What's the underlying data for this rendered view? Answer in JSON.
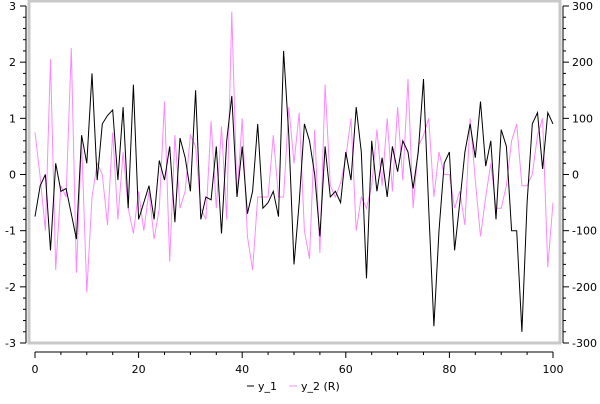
{
  "chart_data": {
    "type": "line",
    "title": "",
    "xlabel": "",
    "ylabel": "",
    "xlim": [
      0,
      100
    ],
    "ylim_left": [
      -3,
      3
    ],
    "ylim_right": [
      -300,
      300
    ],
    "grid": false,
    "legend_placement": "bottom",
    "x_ticks": [
      "0",
      "20",
      "40",
      "60",
      "80",
      "100"
    ],
    "y_ticks_left": [
      "3",
      "2",
      "1",
      "0",
      "-1",
      "-2",
      "-3"
    ],
    "y_ticks_right": [
      "300",
      "200",
      "100",
      "0",
      "-100",
      "-200",
      "-300"
    ],
    "series": [
      {
        "name": "y_1",
        "axis": "left",
        "color": "#000000",
        "values": [
          -0.75,
          -0.2,
          0,
          -1.35,
          0.2,
          -0.3,
          -0.25,
          -0.7,
          -1.15,
          0.7,
          0.2,
          1.8,
          -0.1,
          0.9,
          1.05,
          1.15,
          -0.1,
          1.2,
          -0.6,
          1.6,
          -0.8,
          -0.5,
          -0.2,
          -0.8,
          0.25,
          -0.1,
          0.5,
          -0.85,
          0.65,
          0.3,
          -0.3,
          1.5,
          -0.8,
          -0.4,
          -0.45,
          0.5,
          -1.05,
          0.6,
          1.4,
          -0.4,
          0.5,
          -0.7,
          -0.3,
          0.9,
          -0.6,
          -0.5,
          -0.3,
          -0.75,
          2.2,
          0.7,
          -1.6,
          -0.5,
          0.9,
          0.6,
          0,
          -1.1,
          0.5,
          -0.4,
          -0.3,
          -0.5,
          0.4,
          -0.1,
          1.2,
          0.4,
          -1.85,
          0.6,
          -0.3,
          0.3,
          -0.4,
          0.5,
          0.05,
          0.6,
          0.4,
          -0.25,
          0.4,
          1.7,
          -0.6,
          -2.7,
          -1.0,
          0.2,
          0.4,
          -1.35,
          -0.5,
          0.4,
          0.9,
          0.3,
          1.3,
          0.15,
          0.6,
          -0.8,
          0.8,
          0.5,
          -1.0,
          -1.0,
          -2.8,
          -0.5,
          0.9,
          1.1,
          0.1,
          1.1,
          0.9
        ]
      },
      {
        "name": "y_2 (R)",
        "axis": "right",
        "color": "#ff88ff",
        "values": [
          75,
          -5,
          -100,
          205,
          -170,
          -20,
          -40,
          225,
          -175,
          60,
          -210,
          -40,
          20,
          0,
          -90,
          75,
          -80,
          40,
          -60,
          -105,
          -30,
          -100,
          -30,
          -115,
          -60,
          130,
          -155,
          70,
          -60,
          -30,
          70,
          50,
          -60,
          -80,
          95,
          -60,
          85,
          -80,
          290,
          -40,
          100,
          -110,
          -170,
          -40,
          -40,
          -40,
          70,
          -40,
          -40,
          120,
          20,
          110,
          -100,
          -150,
          80,
          -140,
          160,
          -20,
          -40,
          -15,
          30,
          100,
          -100,
          -40,
          -60,
          -20,
          80,
          -20,
          100,
          -30,
          120,
          -10,
          170,
          -60,
          50,
          70,
          100,
          -40,
          40,
          0,
          0,
          -60,
          -30,
          -90,
          100,
          -10,
          -110,
          -40,
          20,
          -60,
          -60,
          -20,
          60,
          90,
          -20,
          -20,
          0,
          70,
          100,
          -165,
          -50
        ]
      }
    ]
  }
}
